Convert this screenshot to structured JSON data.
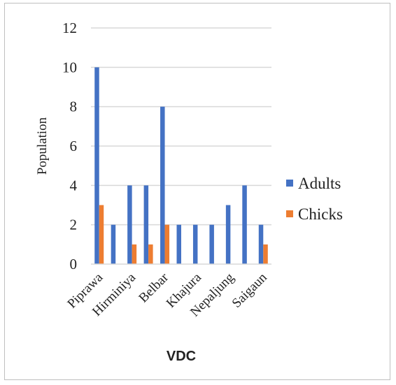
{
  "chart_data": {
    "type": "bar",
    "categories": [
      "Piprawa",
      "",
      "Hirminiya",
      "",
      "Belbar",
      "",
      "Khajura",
      "",
      "Nepaljung",
      "",
      "Saigaun"
    ],
    "series": [
      {
        "name": "Adults",
        "color": "#4472C4",
        "values": [
          10,
          2,
          4,
          4,
          8,
          2,
          2,
          2,
          3,
          4,
          2
        ]
      },
      {
        "name": "Chicks",
        "color": "#ED7D31",
        "values": [
          3,
          0,
          1,
          1,
          2,
          0,
          0,
          0,
          0,
          0,
          1
        ]
      }
    ],
    "title": "",
    "xlabel": "VDC",
    "ylabel": "Population",
    "ylim": [
      0,
      12
    ],
    "yticks": [
      0,
      2,
      4,
      6,
      8,
      10,
      12
    ],
    "grid": true,
    "legend_position": "right"
  }
}
